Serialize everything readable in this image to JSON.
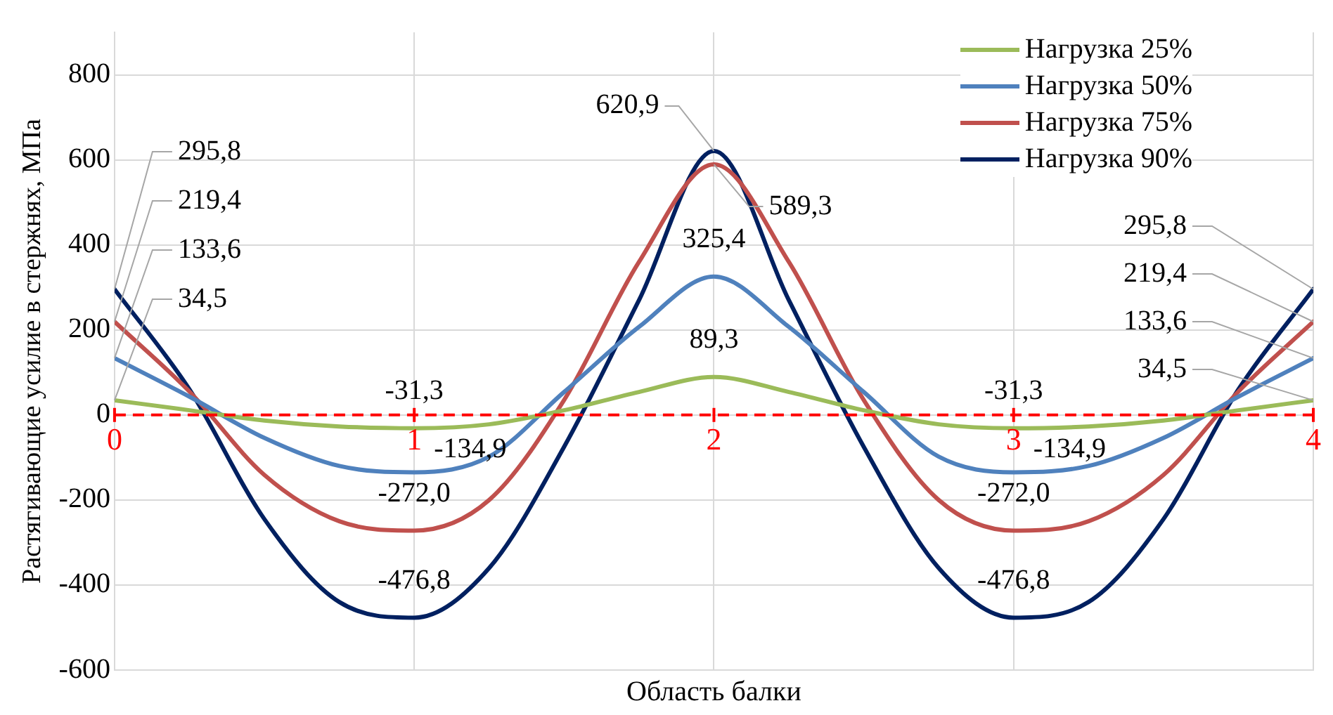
{
  "chart_data": {
    "type": "line",
    "xlabel": "Область балки",
    "ylabel": "Растягивающие усилие в стержнях, МПа",
    "x": [
      0,
      0.25,
      0.5,
      0.75,
      1,
      1.25,
      1.5,
      1.75,
      2,
      2.25,
      2.5,
      2.75,
      3,
      3.25,
      3.5,
      3.75,
      4
    ],
    "series": [
      {
        "name": "Нагрузка 25%",
        "color": "#9bbb59",
        "values": [
          34.5,
          11,
          -13,
          -27,
          -31.3,
          -22,
          11,
          54,
          89.3,
          54,
          11,
          -22,
          -31.3,
          -27,
          -13,
          11,
          34.5
        ],
        "value_labels": [
          "34,5",
          null,
          null,
          null,
          "-31,3",
          null,
          null,
          null,
          "89,3",
          null,
          null,
          null,
          "-31,3",
          null,
          null,
          null,
          "34,5"
        ]
      },
      {
        "name": "Нагрузка 50%",
        "color": "#4f81bd",
        "values": [
          133.6,
          43,
          -54,
          -120,
          -134.9,
          -98,
          54,
          207,
          325.4,
          207,
          54,
          -98,
          -134.9,
          -120,
          -54,
          43,
          133.6
        ],
        "value_labels": [
          "133,6",
          null,
          null,
          null,
          "-134,9",
          null,
          null,
          null,
          "325,4",
          null,
          null,
          null,
          "-134,9",
          null,
          null,
          null,
          "133,6"
        ]
      },
      {
        "name": "Нагрузка 75%",
        "color": "#c0504d",
        "values": [
          219.4,
          55,
          -141,
          -250,
          -272.0,
          -200,
          35,
          360,
          589.3,
          360,
          35,
          -200,
          -272.0,
          -250,
          -141,
          55,
          219.4
        ],
        "value_labels": [
          "219,4",
          null,
          null,
          null,
          "-272,0",
          null,
          null,
          null,
          "589,3",
          null,
          null,
          null,
          "-272,0",
          null,
          null,
          null,
          "219,4"
        ]
      },
      {
        "name": "Нагрузка 90%",
        "color": "#002060",
        "values": [
          295.8,
          60,
          -245,
          -440,
          -476.8,
          -360,
          -75,
          270,
          620.9,
          270,
          -75,
          -360,
          -476.8,
          -440,
          -245,
          60,
          295.8
        ],
        "value_labels": [
          "295,8",
          null,
          null,
          null,
          "-476,8",
          null,
          null,
          null,
          "620,9",
          null,
          null,
          null,
          "-476,8",
          null,
          null,
          null,
          "295,8"
        ]
      }
    ],
    "xlim": [
      0,
      4
    ],
    "xticks": [
      0,
      1,
      2,
      3,
      4
    ],
    "ylim": [
      -600,
      900
    ],
    "yticks": [
      -600,
      -400,
      -200,
      0,
      200,
      400,
      600,
      800
    ],
    "ref_lines": [
      {
        "axis": "y",
        "value": 0,
        "color": "#ff0000",
        "line_style": "dashed"
      }
    ],
    "grid": true,
    "legend": "top right",
    "marker": "none",
    "line_style": "solid"
  }
}
